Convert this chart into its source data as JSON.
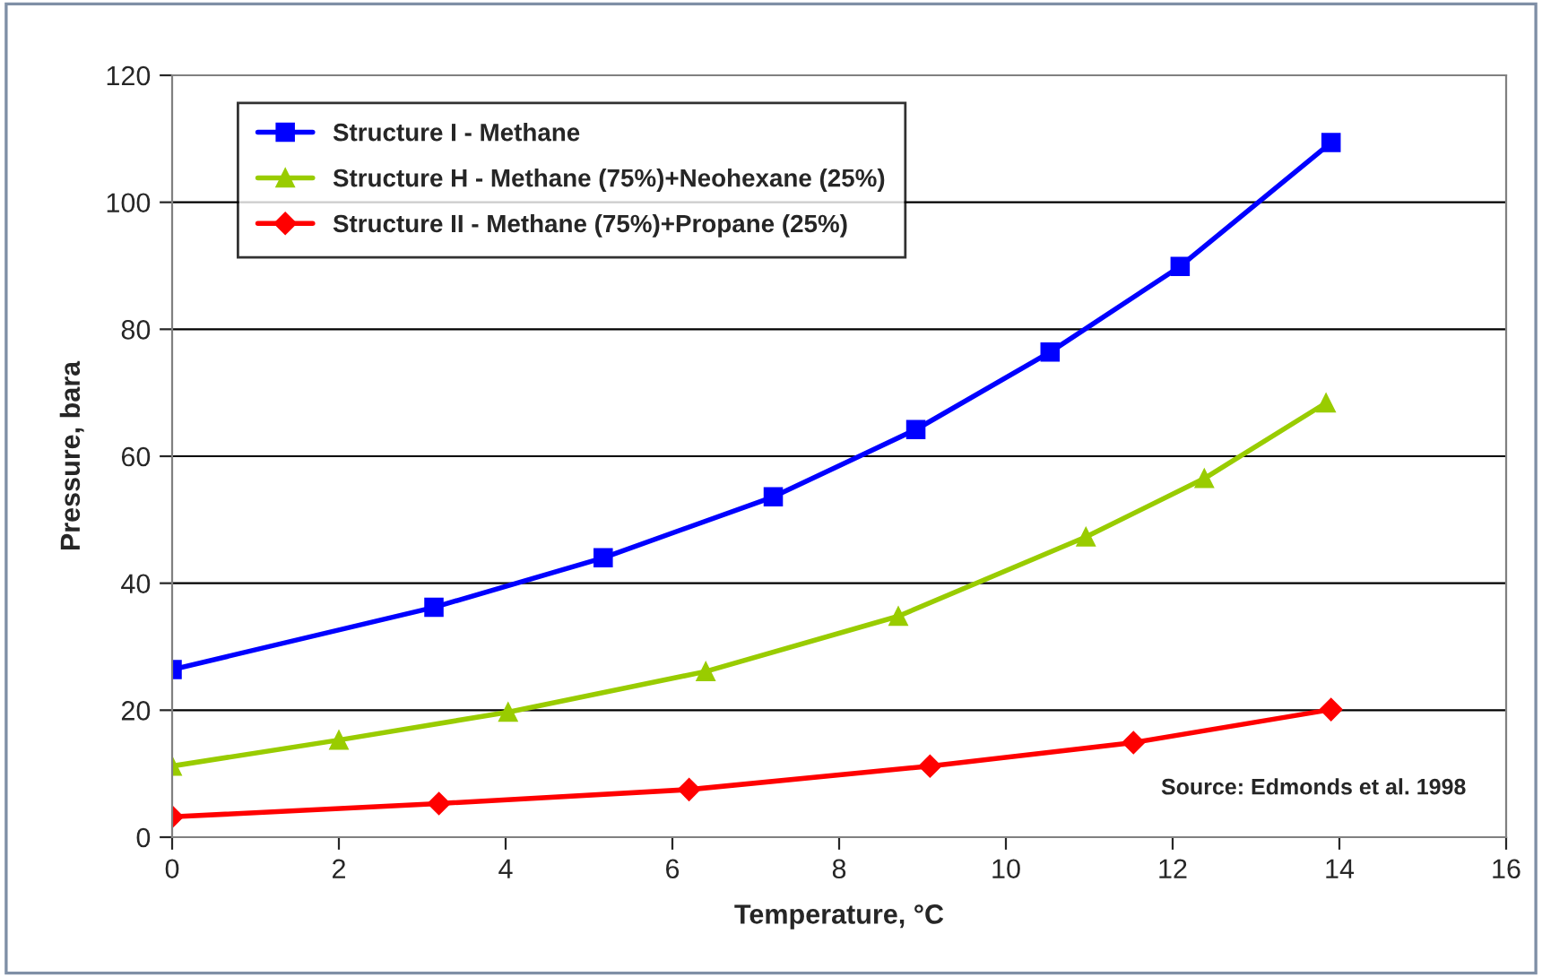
{
  "chart_data": {
    "type": "line",
    "xlabel": "Temperature, °C",
    "ylabel": "Pressure, bara",
    "xlim": [
      0,
      16
    ],
    "xticks": [
      0,
      2,
      4,
      6,
      8,
      10,
      12,
      14,
      16
    ],
    "ylim": [
      0,
      120
    ],
    "yticks": [
      0,
      20,
      40,
      60,
      80,
      100,
      120
    ],
    "grid": "y",
    "legend": "top left",
    "line_style": "solid",
    "annotations": [
      "Source: Edmonds et al. 1998"
    ],
    "series": [
      {
        "name": "Structure I - Methane",
        "color": "#0000ff",
        "marker": "square",
        "x": [
          0,
          3.14,
          5.17,
          7.21,
          8.92,
          10.53,
          12.09,
          13.9
        ],
        "values": [
          26.4,
          36.2,
          44.0,
          53.6,
          64.2,
          76.4,
          89.9,
          109.4
        ]
      },
      {
        "name": "Structure H - Methane (75%)+Neohexane (25%)",
        "color": "#99cc00",
        "marker": "triangle",
        "x": [
          0,
          2.0,
          4.03,
          6.4,
          8.71,
          10.96,
          12.38,
          13.84
        ],
        "values": [
          11.2,
          15.3,
          19.7,
          26.1,
          34.8,
          47.3,
          56.5,
          68.4
        ]
      },
      {
        "name": "Structure II - Methane (75%)+Propane (25%)",
        "color": "#ff0000",
        "marker": "diamond",
        "x": [
          0,
          3.2,
          6.2,
          9.09,
          11.53,
          13.9
        ],
        "values": [
          3.2,
          5.3,
          7.5,
          11.2,
          14.9,
          20.1
        ]
      }
    ]
  }
}
